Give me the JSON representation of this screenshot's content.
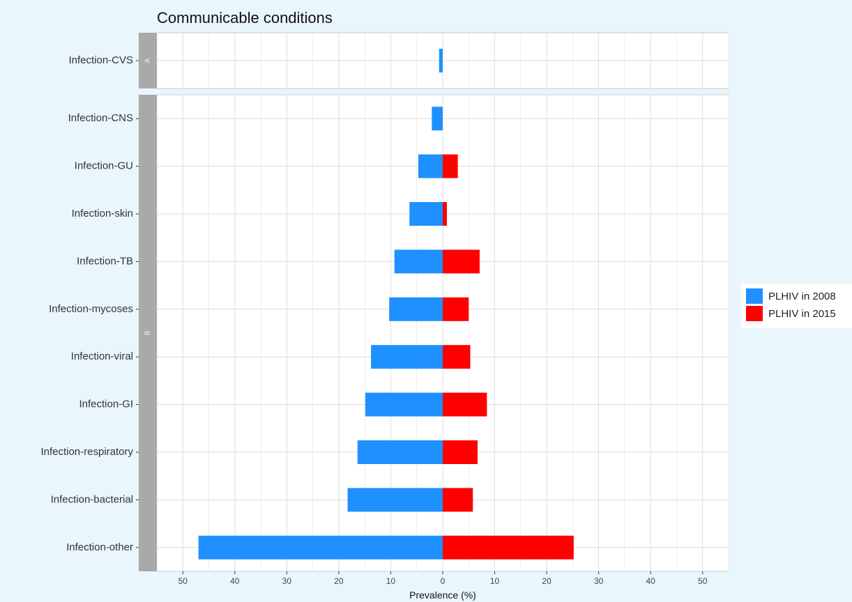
{
  "chart_data": {
    "type": "bar",
    "title": "Communicable conditions",
    "xlabel": "Prevalence (%)",
    "ylabel": "",
    "xlim": [
      -55,
      55
    ],
    "x_ticks": [
      -50,
      -40,
      -30,
      -20,
      -10,
      0,
      10,
      20,
      30,
      40,
      50
    ],
    "x_tick_labels": [
      "50",
      "40",
      "30",
      "20",
      "10",
      "0",
      "10",
      "20",
      "30",
      "40",
      "50"
    ],
    "grid": true,
    "legend_position": "right",
    "facets": [
      {
        "label": "A",
        "categories": [
          "Infection-CVS"
        ],
        "series": [
          {
            "name": "PLHIV in 2008",
            "values": [
              0.7
            ]
          },
          {
            "name": "PLHIV in 2015",
            "values": [
              0
            ]
          }
        ]
      },
      {
        "label": "B",
        "categories": [
          "Infection-CNS",
          "Infection-GU",
          "Infection-skin",
          "Infection-TB",
          "Infection-mycoses",
          "Infection-viral",
          "Infection-GI",
          "Infection-respiratory",
          "Infection-bacterial",
          "Infection-other"
        ],
        "series": [
          {
            "name": "PLHIV in 2008",
            "values": [
              2.1,
              4.7,
              6.4,
              9.3,
              10.3,
              13.8,
              14.9,
              16.4,
              18.3,
              47.0
            ]
          },
          {
            "name": "PLHIV in 2015",
            "values": [
              0,
              2.9,
              0.8,
              7.1,
              5.0,
              5.3,
              8.5,
              6.7,
              5.8,
              25.2
            ]
          }
        ]
      }
    ],
    "colors": {
      "PLHIV in 2008": "#1e90ff",
      "PLHIV in 2015": "#ff0000"
    }
  }
}
